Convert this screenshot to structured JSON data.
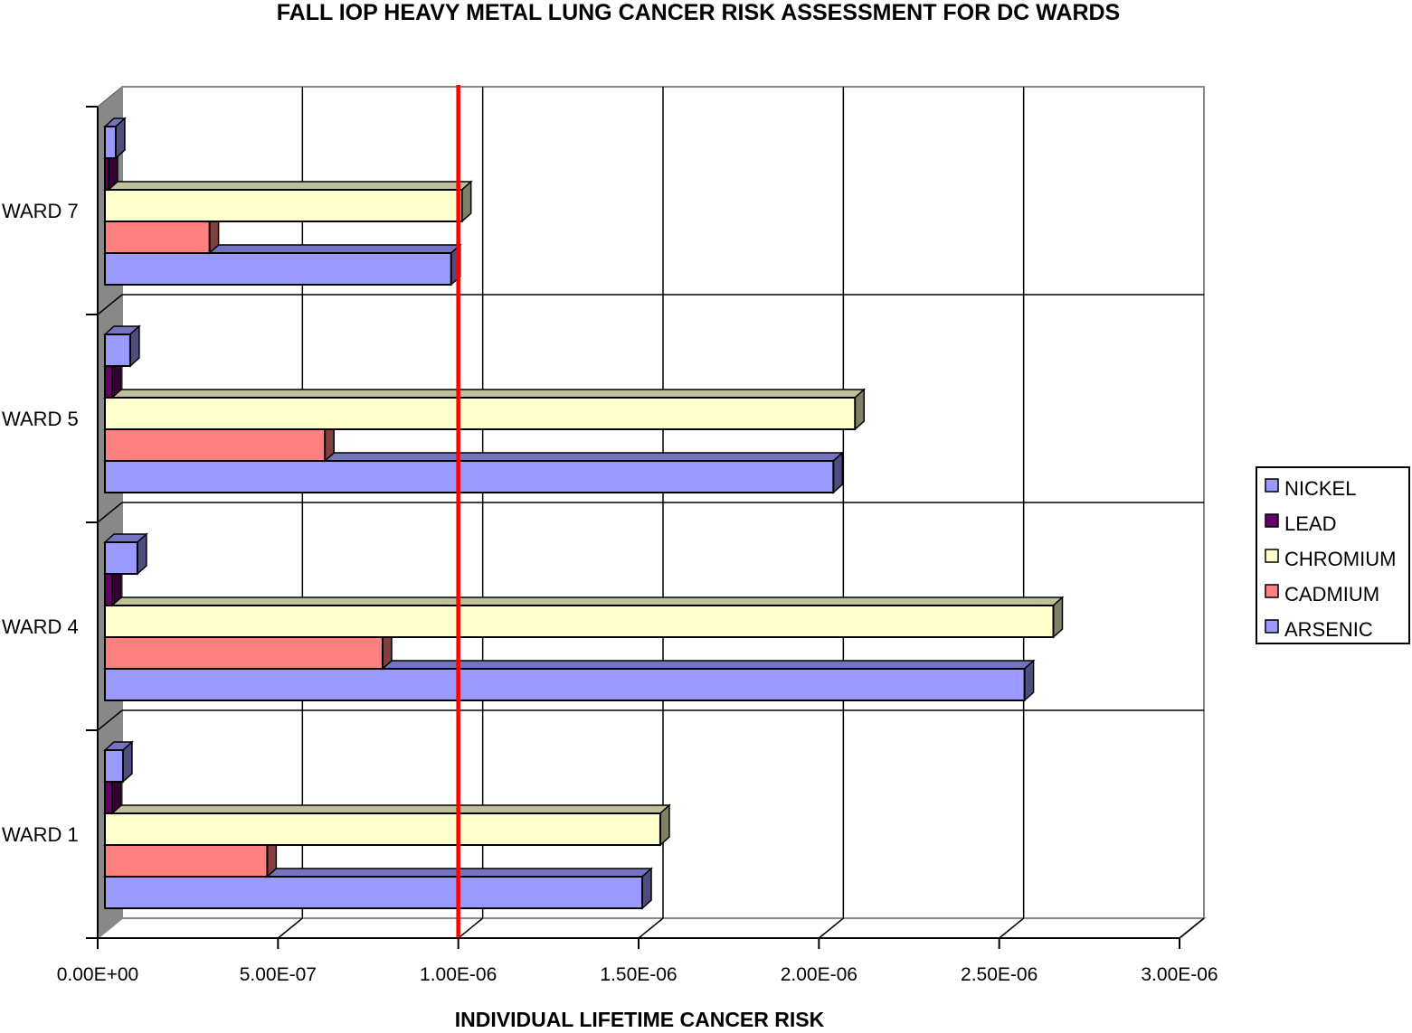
{
  "chart_data": {
    "type": "bar",
    "orientation": "horizontal",
    "style": "3d",
    "title": "FALL IOP HEAVY METAL LUNG CANCER RISK ASSESSMENT FOR DC WARDS",
    "xlabel": "INDIVIDUAL LIFETIME CANCER RISK",
    "ylabel": "",
    "categories": [
      "WARD 1",
      "WARD 4",
      "WARD 5",
      "WARD 7"
    ],
    "xlim": [
      0,
      3e-06
    ],
    "xticks": [
      "0.00E+00",
      "5.00E-07",
      "1.00E-06",
      "1.50E-06",
      "2.00E-06",
      "2.50E-06",
      "3.00E-06"
    ],
    "grid": true,
    "legend_position": "right",
    "reference_line": {
      "value": 1e-06,
      "color": "#ff0000"
    },
    "series": [
      {
        "name": "ARSENIC",
        "color": "#9999ff",
        "values": [
          1.49e-06,
          2.55e-06,
          2.02e-06,
          9.6e-07
        ]
      },
      {
        "name": "CADMIUM",
        "color": "#ff8080",
        "values": [
          4.5e-07,
          7.7e-07,
          6.1e-07,
          2.9e-07
        ]
      },
      {
        "name": "CHROMIUM",
        "color": "#ffffcc",
        "values": [
          1.54e-06,
          2.63e-06,
          2.08e-06,
          9.9e-07
        ]
      },
      {
        "name": "LEAD",
        "color": "#660066",
        "values": [
          2e-08,
          2e-08,
          2e-08,
          1e-08
        ]
      },
      {
        "name": "NICKEL",
        "color": "#9999ff",
        "values": [
          5e-08,
          9e-08,
          7e-08,
          3e-08
        ]
      }
    ],
    "legend_order": [
      "NICKEL",
      "LEAD",
      "CHROMIUM",
      "CADMIUM",
      "ARSENIC"
    ]
  }
}
